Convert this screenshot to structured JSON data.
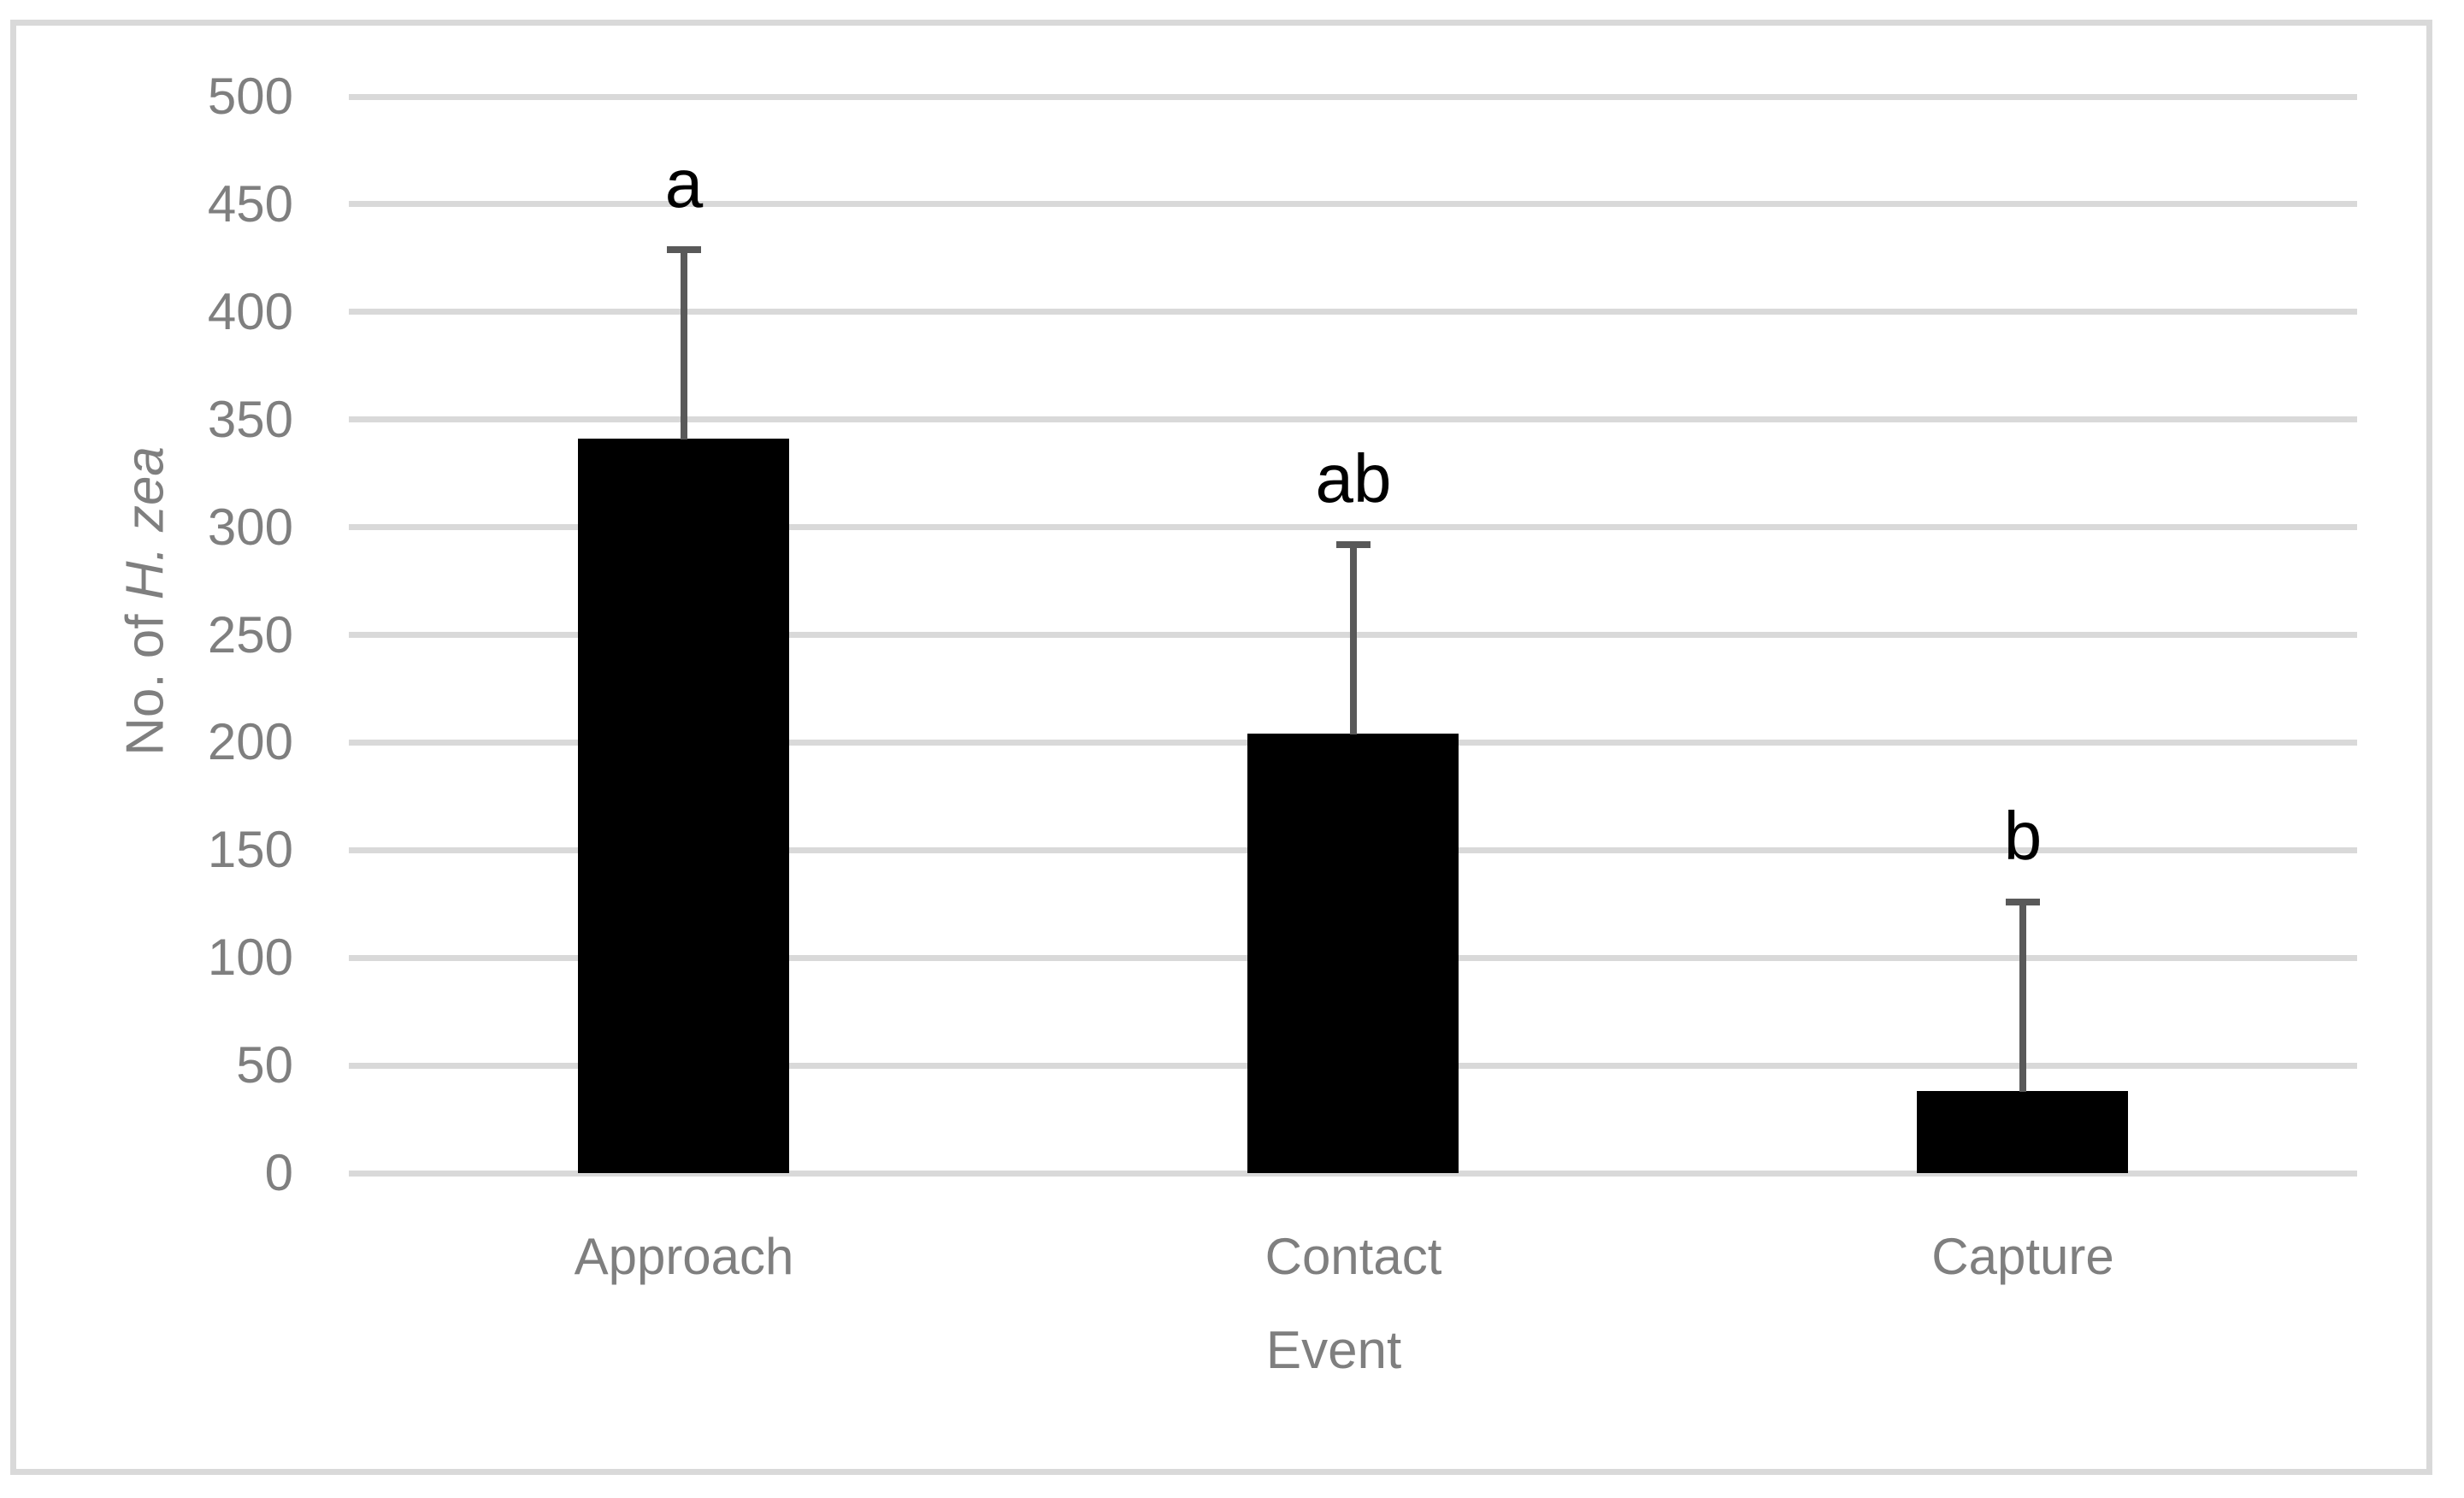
{
  "chart_data": {
    "type": "bar",
    "title": "",
    "categories": [
      "Approach",
      "Contact",
      "Capture"
    ],
    "values": [
      341,
      204,
      38
    ],
    "error_plus": [
      88,
      88,
      88
    ],
    "error_bar_tops": [
      429,
      292,
      126
    ],
    "significance_letters": [
      "a",
      "ab",
      "b"
    ],
    "xlabel": "Event",
    "ylabel": {
      "plain": "No. of ",
      "italic": "H. zea"
    },
    "ylim": [
      0,
      500
    ],
    "ytick_step": 50,
    "yticks": [
      0,
      50,
      100,
      150,
      200,
      250,
      300,
      350,
      400,
      450,
      500
    ],
    "grid": true,
    "legend": "none",
    "colors": {
      "bar": "#000000",
      "error_bar": "#595959",
      "gridline": "#d9d9d9",
      "frame": "#d9d9d9",
      "axis_text": "#7f7f7f",
      "letters": "#000000",
      "background": "#ffffff"
    }
  }
}
